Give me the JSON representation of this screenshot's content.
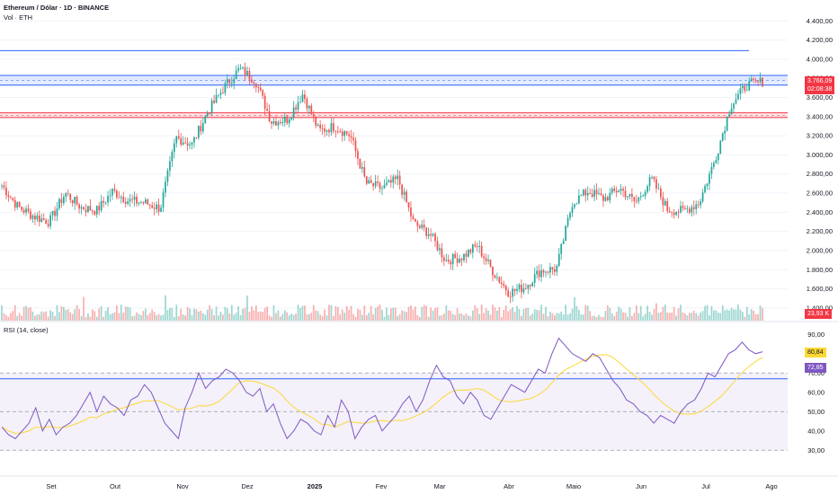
{
  "header": {
    "title": "Ethereum / Dólar · 1D · BINANCE",
    "volume_label": "Vol · ETH",
    "rsi_label": "RSI (14, close)"
  },
  "price_axis": {
    "ticks": [
      "4.400,00",
      "4.200,00",
      "4.000,00",
      "3.800,00",
      "3.600,00",
      "3.400,00",
      "3.200,00",
      "3.000,00",
      "2.800,00",
      "2.600,00",
      "2.400,00",
      "2.200,00",
      "2.000,00",
      "1.800,00",
      "1.600,00",
      "1.400,00"
    ],
    "last_price": "3.766,09",
    "countdown": "02:08:38",
    "volume_value": "23,93 K"
  },
  "rsi_axis": {
    "ticks": [
      "90,00",
      "80,00",
      "70,00",
      "60,00",
      "50,00",
      "40,00",
      "30,00"
    ],
    "rsi_value": "80,84",
    "ma_value": "72,85"
  },
  "time_axis": {
    "labels": [
      "Set",
      "Out",
      "Nov",
      "Dez",
      "2025",
      "Fev",
      "Mar",
      "Abr",
      "Maio",
      "Jun",
      "Jul",
      "Ago"
    ]
  },
  "colors": {
    "up": "#26a69a",
    "down": "#ef5350",
    "rsi_line": "#7e57c2",
    "rsi_ma": "#fdd835",
    "resistance": "#2962ff",
    "support": "#f23645",
    "rsi_band": "#ede7f6"
  },
  "chart_data": {
    "type": "candlestick",
    "symbol": "Ethereum / Dólar",
    "timeframe": "1D",
    "exchange": "BINANCE",
    "y_range": [
      1380,
      4450
    ],
    "close_series": [
      {
        "date": "2024-08-24",
        "close": 2680
      },
      {
        "date": "2024-09-01",
        "close": 2460
      },
      {
        "date": "2024-09-08",
        "close": 2360
      },
      {
        "date": "2024-09-15",
        "close": 2300
      },
      {
        "date": "2024-09-22",
        "close": 2600
      },
      {
        "date": "2024-09-29",
        "close": 2450
      },
      {
        "date": "2024-10-06",
        "close": 2420
      },
      {
        "date": "2024-10-13",
        "close": 2620
      },
      {
        "date": "2024-10-20",
        "close": 2520
      },
      {
        "date": "2024-10-27",
        "close": 2500
      },
      {
        "date": "2024-11-03",
        "close": 2440
      },
      {
        "date": "2024-11-10",
        "close": 3180
      },
      {
        "date": "2024-11-17",
        "close": 3110
      },
      {
        "date": "2024-11-24",
        "close": 3450
      },
      {
        "date": "2024-12-01",
        "close": 3700
      },
      {
        "date": "2024-12-08",
        "close": 3900
      },
      {
        "date": "2024-12-15",
        "close": 3780
      },
      {
        "date": "2024-12-22",
        "close": 3350
      },
      {
        "date": "2024-12-29",
        "close": 3370
      },
      {
        "date": "2025-01-05",
        "close": 3640
      },
      {
        "date": "2025-01-12",
        "close": 3250
      },
      {
        "date": "2025-01-19",
        "close": 3300
      },
      {
        "date": "2025-01-26",
        "close": 3200
      },
      {
        "date": "2025-02-02",
        "close": 2700
      },
      {
        "date": "2025-02-09",
        "close": 2650
      },
      {
        "date": "2025-02-16",
        "close": 2750
      },
      {
        "date": "2025-02-23",
        "close": 2280
      },
      {
        "date": "2025-03-02",
        "close": 2180
      },
      {
        "date": "2025-03-09",
        "close": 1900
      },
      {
        "date": "2025-03-16",
        "close": 1930
      },
      {
        "date": "2025-03-23",
        "close": 2050
      },
      {
        "date": "2025-03-30",
        "close": 1780
      },
      {
        "date": "2025-04-06",
        "close": 1560
      },
      {
        "date": "2025-04-13",
        "close": 1620
      },
      {
        "date": "2025-04-20",
        "close": 1790
      },
      {
        "date": "2025-04-27",
        "close": 1810
      },
      {
        "date": "2025-05-04",
        "close": 2500
      },
      {
        "date": "2025-05-11",
        "close": 2620
      },
      {
        "date": "2025-05-18",
        "close": 2540
      },
      {
        "date": "2025-05-25",
        "close": 2650
      },
      {
        "date": "2025-06-01",
        "close": 2500
      },
      {
        "date": "2025-06-08",
        "close": 2750
      },
      {
        "date": "2025-06-15",
        "close": 2430
      },
      {
        "date": "2025-06-22",
        "close": 2410
      },
      {
        "date": "2025-06-29",
        "close": 2500
      },
      {
        "date": "2025-07-06",
        "close": 2950
      },
      {
        "date": "2025-07-13",
        "close": 3520
      },
      {
        "date": "2025-07-20",
        "close": 3730
      },
      {
        "date": "2025-07-27",
        "close": 3766
      }
    ],
    "horizontal_lines": [
      {
        "kind": "resistance",
        "price": 4090
      },
      {
        "kind": "resistance-zone",
        "from": 3730,
        "to": 3830
      },
      {
        "kind": "support-zone",
        "from": 3390,
        "to": 3440
      }
    ],
    "rsi": {
      "period": 14,
      "levels": [
        70,
        30
      ],
      "current": 80.84,
      "ma_current": 72.85,
      "horizontal_line": 67,
      "series": [
        42,
        38,
        36,
        40,
        44,
        52,
        40,
        46,
        38,
        42,
        44,
        48,
        54,
        60,
        50,
        58,
        54,
        52,
        48,
        56,
        58,
        64,
        60,
        52,
        44,
        40,
        36,
        52,
        60,
        70,
        62,
        66,
        68,
        72,
        70,
        66,
        60,
        58,
        62,
        50,
        54,
        44,
        36,
        40,
        46,
        44,
        40,
        38,
        48,
        42,
        56,
        50,
        36,
        42,
        46,
        48,
        40,
        44,
        48,
        54,
        58,
        50,
        56,
        66,
        74,
        68,
        66,
        58,
        54,
        60,
        56,
        48,
        46,
        52,
        58,
        64,
        62,
        60,
        66,
        72,
        70,
        80,
        88,
        84,
        80,
        78,
        76,
        80,
        78,
        72,
        66,
        62,
        56,
        54,
        50,
        48,
        44,
        48,
        46,
        44,
        50,
        54,
        56,
        62,
        70,
        68,
        74,
        80,
        82,
        86,
        82,
        80,
        81
      ]
    }
  }
}
